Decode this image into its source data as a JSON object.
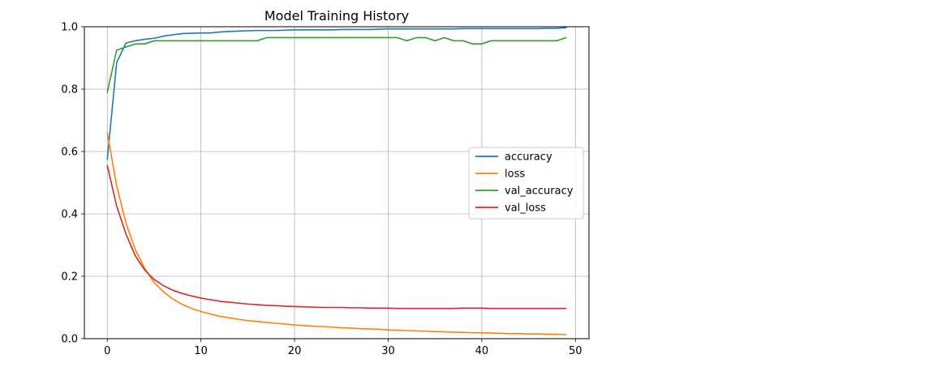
{
  "chart_data": {
    "type": "line",
    "title": "Model Training History",
    "xlabel": "",
    "ylabel": "",
    "xlim": [
      -2.45,
      51.45
    ],
    "ylim": [
      0.0,
      1.0
    ],
    "xticks": [
      0,
      10,
      20,
      30,
      40,
      50
    ],
    "yticks": [
      0.0,
      0.2,
      0.4,
      0.6,
      0.8,
      1.0
    ],
    "xtick_labels": [
      "0",
      "10",
      "20",
      "30",
      "40",
      "50"
    ],
    "ytick_labels": [
      "0.0",
      "0.2",
      "0.4",
      "0.6",
      "0.8",
      "1.0"
    ],
    "grid": true,
    "legend_position": "center-right",
    "x": [
      0,
      1,
      2,
      3,
      4,
      5,
      6,
      7,
      8,
      9,
      10,
      11,
      12,
      13,
      14,
      15,
      16,
      17,
      18,
      19,
      20,
      21,
      22,
      23,
      24,
      25,
      26,
      27,
      28,
      29,
      30,
      31,
      32,
      33,
      34,
      35,
      36,
      37,
      38,
      39,
      40,
      41,
      42,
      43,
      44,
      45,
      46,
      47,
      48,
      49
    ],
    "series": [
      {
        "name": "accuracy",
        "color": "#1f77b4",
        "values": [
          0.575,
          0.885,
          0.948,
          0.955,
          0.96,
          0.963,
          0.97,
          0.974,
          0.978,
          0.979,
          0.98,
          0.98,
          0.983,
          0.985,
          0.986,
          0.987,
          0.988,
          0.988,
          0.988,
          0.989,
          0.99,
          0.99,
          0.99,
          0.99,
          0.99,
          0.991,
          0.991,
          0.991,
          0.991,
          0.992,
          0.993,
          0.993,
          0.993,
          0.993,
          0.993,
          0.993,
          0.993,
          0.993,
          0.994,
          0.994,
          0.994,
          0.994,
          0.994,
          0.994,
          0.994,
          0.994,
          0.994,
          0.995,
          0.995,
          0.997
        ]
      },
      {
        "name": "loss",
        "color": "#ff7f0e",
        "values": [
          0.66,
          0.49,
          0.37,
          0.285,
          0.225,
          0.18,
          0.15,
          0.127,
          0.11,
          0.097,
          0.087,
          0.079,
          0.072,
          0.067,
          0.062,
          0.058,
          0.055,
          0.052,
          0.049,
          0.047,
          0.044,
          0.042,
          0.04,
          0.039,
          0.037,
          0.035,
          0.034,
          0.032,
          0.031,
          0.03,
          0.028,
          0.027,
          0.026,
          0.025,
          0.024,
          0.023,
          0.022,
          0.021,
          0.02,
          0.019,
          0.019,
          0.018,
          0.017,
          0.016,
          0.016,
          0.015,
          0.015,
          0.014,
          0.014,
          0.013
        ]
      },
      {
        "name": "val_accuracy",
        "color": "#2ca02c",
        "values": [
          0.79,
          0.925,
          0.935,
          0.945,
          0.945,
          0.955,
          0.955,
          0.955,
          0.955,
          0.955,
          0.955,
          0.955,
          0.955,
          0.955,
          0.955,
          0.955,
          0.955,
          0.965,
          0.965,
          0.965,
          0.965,
          0.965,
          0.965,
          0.965,
          0.965,
          0.965,
          0.965,
          0.965,
          0.965,
          0.965,
          0.965,
          0.965,
          0.955,
          0.965,
          0.965,
          0.955,
          0.965,
          0.955,
          0.955,
          0.945,
          0.945,
          0.955,
          0.955,
          0.955,
          0.955,
          0.955,
          0.955,
          0.955,
          0.955,
          0.965
        ]
      },
      {
        "name": "val_loss",
        "color": "#d62728",
        "values": [
          0.555,
          0.425,
          0.335,
          0.265,
          0.22,
          0.19,
          0.17,
          0.155,
          0.145,
          0.137,
          0.13,
          0.125,
          0.12,
          0.117,
          0.114,
          0.111,
          0.109,
          0.107,
          0.106,
          0.104,
          0.103,
          0.102,
          0.101,
          0.1,
          0.1,
          0.1,
          0.099,
          0.099,
          0.098,
          0.098,
          0.098,
          0.097,
          0.097,
          0.097,
          0.097,
          0.097,
          0.097,
          0.097,
          0.098,
          0.098,
          0.098,
          0.097,
          0.097,
          0.097,
          0.097,
          0.097,
          0.097,
          0.097,
          0.097,
          0.097
        ]
      }
    ]
  }
}
